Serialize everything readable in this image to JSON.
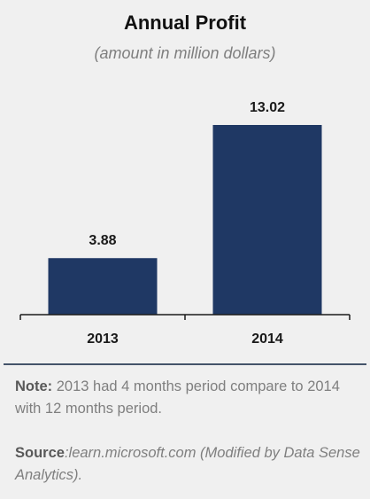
{
  "chart_data": {
    "type": "bar",
    "title": "Annual Profit",
    "subtitle": "(amount in million dollars)",
    "categories": [
      "2013",
      "2014"
    ],
    "values": [
      3.88,
      13.02
    ],
    "value_labels": [
      "3.88",
      "13.02"
    ],
    "ylim": [
      0,
      13.02
    ],
    "grid": false,
    "legend": "none",
    "bar_color": "#1f3864"
  },
  "note": {
    "label": "Note:",
    "text": " 2013 had 4 months period compare to 2014 with 12 months period."
  },
  "source": {
    "label": "Source",
    "text": ":learn.microsoft.com (Modified by Data Sense Analytics)."
  },
  "colors": {
    "background": "#f0f0f0",
    "divider": "#44546a",
    "text_muted": "#7f7f7f"
  }
}
